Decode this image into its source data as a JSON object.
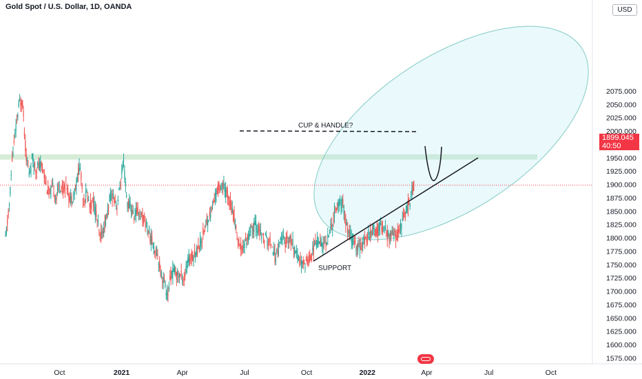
{
  "header": {
    "title": "Gold Spot / U.S. Dollar, 1D, OANDA",
    "currency_button": "USD"
  },
  "price_badge": {
    "price": "1899.045",
    "countdown": "40:50"
  },
  "chart_data": {
    "type": "candlestick",
    "symbol": "Gold Spot / U.S. Dollar",
    "interval": "1D",
    "exchange": "OANDA",
    "ylim": [
      1562,
      2100
    ],
    "y_ticks": [
      "2075.000",
      "2050.000",
      "2025.000",
      "2000.000",
      "1975.000",
      "1950.000",
      "1925.000",
      "1900.000",
      "1875.000",
      "1850.000",
      "1825.000",
      "1800.000",
      "1775.000",
      "1750.000",
      "1725.000",
      "1700.000",
      "1675.000",
      "1650.000",
      "1625.000",
      "1600.000",
      "1575.000"
    ],
    "x_ticks": [
      "Oct",
      "2021",
      "Apr",
      "Jul",
      "Oct",
      "2022",
      "Apr",
      "Jul",
      "Oct"
    ],
    "x_tick_index": [
      80,
      172,
      262,
      354,
      446,
      536,
      624,
      716,
      808
    ],
    "last_price": 1899.045,
    "bull_color": "#26a69a",
    "bear_color": "#ef5350",
    "price_path": [
      [
        0,
        1800
      ],
      [
        5,
        1850
      ],
      [
        10,
        1950
      ],
      [
        15,
        2000
      ],
      [
        20,
        2050
      ],
      [
        25,
        2060
      ],
      [
        30,
        1960
      ],
      [
        35,
        1920
      ],
      [
        40,
        1950
      ],
      [
        45,
        1930
      ],
      [
        50,
        1935
      ],
      [
        55,
        1935
      ],
      [
        60,
        1900
      ],
      [
        65,
        1880
      ],
      [
        70,
        1895
      ],
      [
        75,
        1875
      ],
      [
        80,
        1900
      ],
      [
        85,
        1890
      ],
      [
        90,
        1905
      ],
      [
        95,
        1870
      ],
      [
        100,
        1880
      ],
      [
        105,
        1900
      ],
      [
        110,
        1940
      ],
      [
        115,
        1870
      ],
      [
        120,
        1885
      ],
      [
        125,
        1860
      ],
      [
        130,
        1870
      ],
      [
        135,
        1840
      ],
      [
        140,
        1800
      ],
      [
        145,
        1815
      ],
      [
        150,
        1840
      ],
      [
        155,
        1875
      ],
      [
        160,
        1880
      ],
      [
        165,
        1860
      ],
      [
        170,
        1900
      ],
      [
        175,
        1940
      ],
      [
        180,
        1865
      ],
      [
        185,
        1860
      ],
      [
        190,
        1840
      ],
      [
        195,
        1850
      ],
      [
        200,
        1845
      ],
      [
        205,
        1835
      ],
      [
        210,
        1820
      ],
      [
        215,
        1800
      ],
      [
        220,
        1780
      ],
      [
        225,
        1775
      ],
      [
        230,
        1735
      ],
      [
        235,
        1720
      ],
      [
        240,
        1690
      ],
      [
        245,
        1730
      ],
      [
        250,
        1740
      ],
      [
        255,
        1730
      ],
      [
        260,
        1730
      ],
      [
        265,
        1725
      ],
      [
        270,
        1755
      ],
      [
        275,
        1765
      ],
      [
        280,
        1770
      ],
      [
        285,
        1780
      ],
      [
        290,
        1795
      ],
      [
        295,
        1820
      ],
      [
        300,
        1835
      ],
      [
        305,
        1850
      ],
      [
        310,
        1875
      ],
      [
        315,
        1895
      ],
      [
        320,
        1900
      ],
      [
        325,
        1890
      ],
      [
        330,
        1880
      ],
      [
        335,
        1855
      ],
      [
        340,
        1830
      ],
      [
        345,
        1790
      ],
      [
        350,
        1780
      ],
      [
        355,
        1790
      ],
      [
        360,
        1805
      ],
      [
        365,
        1815
      ],
      [
        370,
        1825
      ],
      [
        375,
        1815
      ],
      [
        380,
        1800
      ],
      [
        385,
        1800
      ],
      [
        390,
        1790
      ],
      [
        395,
        1790
      ],
      [
        400,
        1760
      ],
      [
        405,
        1790
      ],
      [
        410,
        1800
      ],
      [
        415,
        1790
      ],
      [
        420,
        1800
      ],
      [
        425,
        1790
      ],
      [
        430,
        1770
      ],
      [
        435,
        1760
      ],
      [
        440,
        1750
      ],
      [
        445,
        1755
      ],
      [
        450,
        1760
      ],
      [
        455,
        1775
      ],
      [
        460,
        1790
      ],
      [
        465,
        1800
      ],
      [
        470,
        1785
      ],
      [
        475,
        1795
      ],
      [
        480,
        1810
      ],
      [
        485,
        1830
      ],
      [
        490,
        1860
      ],
      [
        495,
        1865
      ],
      [
        500,
        1865
      ],
      [
        505,
        1820
      ],
      [
        510,
        1805
      ],
      [
        515,
        1795
      ],
      [
        520,
        1780
      ],
      [
        525,
        1785
      ],
      [
        530,
        1790
      ],
      [
        535,
        1800
      ],
      [
        540,
        1810
      ],
      [
        545,
        1820
      ],
      [
        550,
        1810
      ],
      [
        555,
        1825
      ],
      [
        560,
        1815
      ],
      [
        565,
        1805
      ],
      [
        570,
        1800
      ],
      [
        575,
        1810
      ],
      [
        580,
        1800
      ],
      [
        585,
        1820
      ],
      [
        590,
        1840
      ],
      [
        595,
        1860
      ],
      [
        600,
        1870
      ],
      [
        603,
        1890
      ],
      [
        605,
        1899
      ]
    ],
    "annotations": {
      "top_label": "CUP & HANDLE?",
      "bottom_label": "SUPPORT"
    }
  }
}
